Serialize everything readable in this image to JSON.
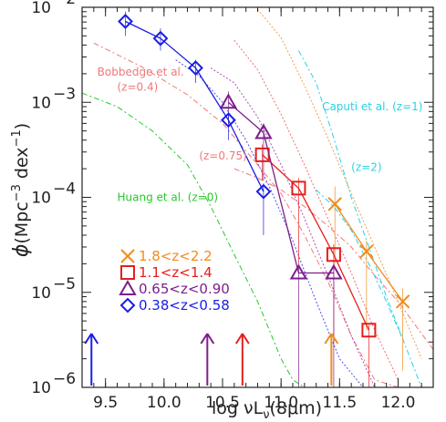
{
  "chart_data": {
    "type": "line",
    "title": "",
    "xlabel_parts": {
      "prefix": "log ",
      "nu": "ν",
      "L": "L",
      "sub": "ν",
      "suffix": "(8μm)"
    },
    "ylabel_parts": {
      "phi": "ϕ",
      "a": "(Mpc",
      "exp1": "−3",
      "b": " dex",
      "exp2": "−1",
      "c": ")"
    },
    "xlim": [
      9.3,
      12.3
    ],
    "ylim_log10": [
      -6,
      -2
    ],
    "x_ticks": [
      9.5,
      10.0,
      10.5,
      11.0,
      11.5,
      12.0
    ],
    "x_tick_labels": [
      "9.5",
      "10.0",
      "10.5",
      "11.0",
      "11.5",
      "12.0"
    ],
    "y_ticks_exp": [
      -6,
      -5,
      -4,
      -3,
      -2
    ],
    "y_tick_base": "10",
    "y_tick_exps": [
      "−6",
      "−5",
      "−4",
      "−3",
      "−2"
    ],
    "series": [
      {
        "name": "1.8<z<2.2",
        "marker": "x",
        "color": "#f08c1e",
        "x": [
          11.46,
          11.73,
          12.04
        ],
        "y": [
          8.5e-05,
          2.7e-05,
          8e-06
        ],
        "err_lo": [
          2e-05,
          4e-06,
          1.5e-06
        ],
        "err_hi": [
          0.00013,
          3.5e-05,
          1.1e-05
        ]
      },
      {
        "name": "1.1<z<1.4",
        "marker": "square",
        "color": "#e61e1e",
        "x": [
          10.84,
          11.15,
          11.45,
          11.75
        ],
        "y": [
          0.00028,
          0.000125,
          2.5e-05,
          4e-06
        ],
        "err_lo": [
          0.00015,
          2e-05,
          3e-06,
          1e-06
        ],
        "err_hi": [
          0.00036,
          0.00016,
          3.2e-05,
          4.5e-06
        ]
      },
      {
        "name": "0.65<z<0.90",
        "marker": "triangle",
        "color": "#7d1e8c",
        "x": [
          10.55,
          10.85,
          11.15,
          11.45
        ],
        "y": [
          0.001,
          0.00048,
          1.6e-05,
          1.6e-05
        ],
        "err_lo": [
          0.0006,
          0.00015,
          1e-06,
          1e-06
        ],
        "err_hi": [
          0.0013,
          0.0006,
          2e-05,
          2e-05
        ]
      },
      {
        "name": "0.38<z<0.58",
        "marker": "diamond",
        "color": "#1a1ee6",
        "x": [
          9.67,
          9.97,
          10.27,
          10.55,
          10.85
        ],
        "y": [
          0.0071,
          0.0047,
          0.0023,
          0.00065,
          0.000115
        ],
        "err_lo": [
          0.005,
          0.0035,
          0.0016,
          0.0004,
          4e-05
        ],
        "err_hi": [
          0.009,
          0.006,
          0.0028,
          0.0008,
          0.00014
        ]
      }
    ],
    "model_curves": [
      {
        "name": "Bobbedge et al. (z=0.4)",
        "color": "#f07878",
        "dash": "6,3,2,3",
        "x": [
          9.4,
          9.8,
          10.2,
          10.5,
          10.8,
          11.0,
          11.2,
          11.4,
          11.6,
          11.8,
          12.0,
          12.2
        ],
        "y": [
          0.0042,
          0.0024,
          0.0012,
          0.0006,
          0.00022,
          0.00011,
          4e-05,
          1.3e-05,
          3.5e-06,
          1.2e-06,
          1e-06,
          1e-06
        ]
      },
      {
        "name": "(z=0.75)",
        "color": "#f07878",
        "dash": "6,3,2,3",
        "x": [
          10.6,
          10.8,
          11.0,
          11.2,
          11.4,
          11.6,
          11.8,
          12.0,
          12.3
        ],
        "y": [
          0.0002,
          0.00016,
          0.00012,
          8e-05,
          5e-05,
          3e-05,
          1.5e-05,
          8e-06,
          2.5e-06
        ]
      },
      {
        "name": "Huang et al. (z=0)",
        "color": "#28c828",
        "dash": "6,3,2,3",
        "x": [
          9.3,
          9.6,
          9.9,
          10.2,
          10.4,
          10.6,
          10.8,
          11.0,
          11.1,
          11.2
        ],
        "y": [
          0.00125,
          0.0009,
          0.0005,
          0.00022,
          8e-05,
          2.5e-05,
          8e-06,
          2e-06,
          1.2e-06,
          1e-06
        ]
      },
      {
        "name": "Caputi et al. (z=1)",
        "color": "#28d2e6",
        "dash": "6,3,2,3",
        "x": [
          11.15,
          11.3,
          11.45,
          11.6,
          11.75,
          11.9,
          12.05,
          12.2
        ],
        "y": [
          0.0035,
          0.0016,
          0.00042,
          0.0001,
          3e-05,
          9e-06,
          3e-06,
          1e-06
        ]
      },
      {
        "name": "(z=2)",
        "color": "#28d2e6",
        "dash": "6,3,2,3",
        "x": [
          11.3,
          11.45,
          11.6,
          11.75,
          11.9,
          12.05
        ],
        "y": [
          0.00012,
          8e-05,
          4.5e-05,
          2e-05,
          8e-06,
          3e-06
        ]
      },
      {
        "name": "",
        "color": "#f0a050",
        "dash": "2,2",
        "x": [
          10.8,
          11.0,
          11.2,
          11.4,
          11.6,
          11.8,
          12.0,
          12.2
        ],
        "y": [
          0.0095,
          0.0048,
          0.0015,
          0.00042,
          0.00011,
          3e-05,
          8e-06,
          2e-06
        ]
      },
      {
        "name": "",
        "color": "#f07070",
        "dash": "2,2",
        "x": [
          10.6,
          10.8,
          11.0,
          11.2,
          11.4,
          11.6,
          11.8,
          12.0
        ],
        "y": [
          0.0045,
          0.0022,
          0.00075,
          0.00022,
          6e-05,
          1.6e-05,
          4e-06,
          1.2e-06
        ]
      },
      {
        "name": "",
        "color": "#b050b0",
        "dash": "2,2",
        "x": [
          10.4,
          10.6,
          10.8,
          11.0,
          11.2,
          11.4,
          11.6,
          11.8
        ],
        "y": [
          0.0023,
          0.0016,
          0.0007,
          0.00022,
          6e-05,
          1.5e-05,
          3.5e-06,
          1e-06
        ]
      },
      {
        "name": "",
        "color": "#5050e0",
        "dash": "2,2",
        "x": [
          10.1,
          10.3,
          10.5,
          10.7,
          10.9,
          11.1,
          11.3,
          11.5,
          11.7
        ],
        "y": [
          0.0028,
          0.0019,
          0.001,
          0.0004,
          0.00013,
          3.5e-05,
          8e-06,
          2e-06,
          1e-06
        ]
      }
    ],
    "annotations": [
      {
        "text": "Bobbedge et al.",
        "color": "#f07878",
        "x": 9.43,
        "y": 0.0019
      },
      {
        "text": "(z=0.4)",
        "color": "#f07878",
        "x": 9.6,
        "y": 0.00132
      },
      {
        "text": "(z=0.75)",
        "color": "#f07878",
        "x": 10.3,
        "y": 0.00025
      },
      {
        "text": "Huang et al. (z=0)",
        "color": "#28c828",
        "x": 9.6,
        "y": 9.2e-05
      },
      {
        "text": "Caputi et al. (z=1)",
        "color": "#28d2e6",
        "x": 11.35,
        "y": 0.00082
      },
      {
        "text": "(z=2)",
        "color": "#28d2e6",
        "x": 11.6,
        "y": 0.00019
      }
    ],
    "arrows": [
      {
        "x": 9.38,
        "color": "#1a1ee6"
      },
      {
        "x": 10.37,
        "color": "#7d1e8c"
      },
      {
        "x": 10.67,
        "color": "#e61e1e"
      },
      {
        "x": 11.43,
        "color": "#f08c1e"
      }
    ],
    "legend_position": "bottom-left"
  }
}
